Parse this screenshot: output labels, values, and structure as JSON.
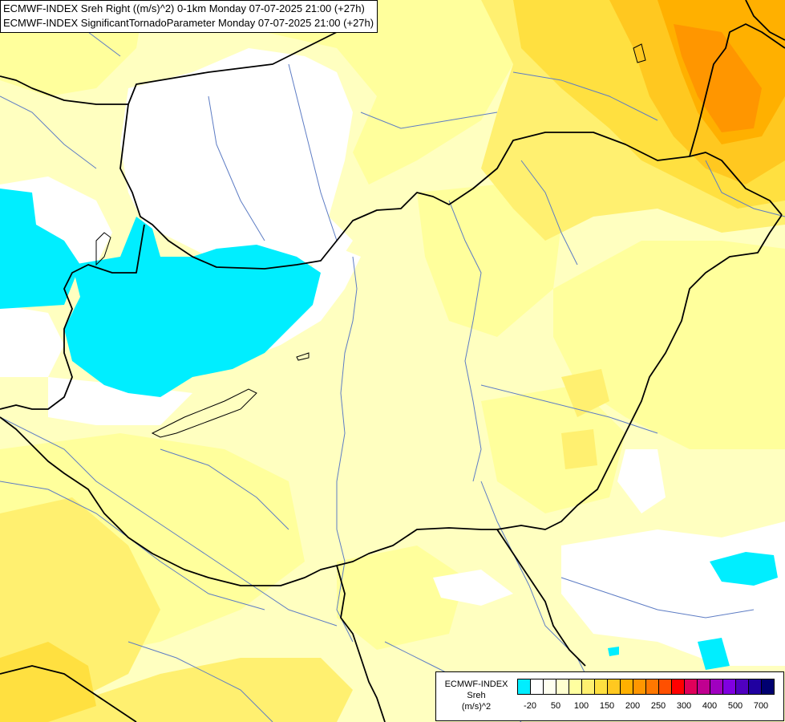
{
  "header": {
    "line1": "ECMWF-INDEX Sreh Right ((m/s)^2) 0-1km Monday 07-07-2025 21:00 (+27h)",
    "line2": "ECMWF-INDEX SignificantTornadoParameter Monday 07-07-2025 21:00 (+27h)"
  },
  "legend": {
    "title_line1": "ECMWF-INDEX",
    "title_line2": "Sreh",
    "title_line3": "(m/s)^2",
    "colors": [
      "#00eeff",
      "#ffffff",
      "#fffff0",
      "#ffffd0",
      "#ffffa0",
      "#fff070",
      "#ffe040",
      "#ffc820",
      "#ffb000",
      "#ff9600",
      "#ff7800",
      "#ff5000",
      "#ff0000",
      "#e0005a",
      "#c00090",
      "#a000c0",
      "#8000e0",
      "#5000c0",
      "#2000a0",
      "#000070"
    ],
    "ticks": [
      "-20",
      "50",
      "100",
      "150",
      "200",
      "250",
      "300",
      "400",
      "500",
      "700"
    ]
  },
  "map": {
    "fill_colors": {
      "white": "#ffffff",
      "cyan": "#00eeff",
      "pale_yellow": "#ffffc0",
      "light_yellow": "#ffff9c",
      "yellow": "#fff070",
      "gold": "#ffe040",
      "orange": "#ffb000",
      "dark_orange": "#ff9600"
    },
    "line_colors": {
      "borders": "#000000",
      "rivers": "#5d7cc4"
    }
  }
}
